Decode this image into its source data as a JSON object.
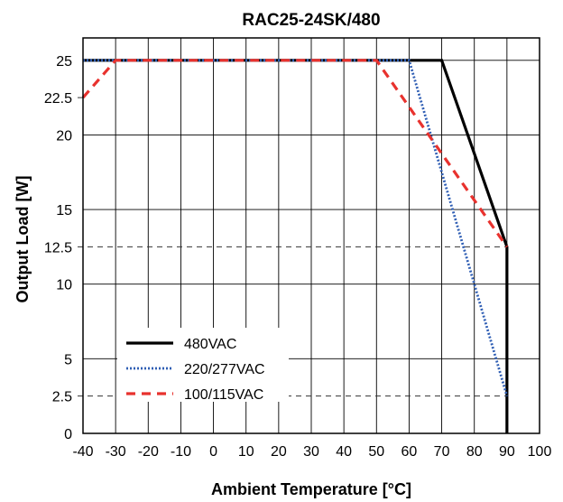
{
  "chart_data": {
    "type": "line",
    "title": "RAC25-24SK/480",
    "xlabel": "Ambient Temperature [°C]",
    "ylabel": "Output Load [W]",
    "xlim": [
      -40,
      100
    ],
    "ylim": [
      0,
      26.5
    ],
    "x_ticks": [
      -40,
      -30,
      -20,
      -10,
      0,
      10,
      20,
      30,
      40,
      50,
      60,
      70,
      80,
      90,
      100
    ],
    "x_tick_labels": [
      "-40",
      "-30",
      "-20",
      "-10",
      "0",
      "10",
      "20",
      "30",
      "40",
      "50",
      "60",
      "70",
      "80",
      "90",
      "100"
    ],
    "y_ticks": [
      0,
      2.5,
      5,
      10,
      12.5,
      15,
      20,
      22.5,
      25
    ],
    "y_tick_labels": [
      "0",
      "2.5",
      "5",
      "10",
      "12.5",
      "15",
      "20",
      "22.5",
      "25"
    ],
    "grid": true,
    "reference_lines": [
      {
        "y": 12.5,
        "x_to": 90
      },
      {
        "y": 2.5,
        "x_to": 90
      },
      {
        "y": 22.5,
        "x_to": -40
      }
    ],
    "series": [
      {
        "name": "480VAC",
        "color": "#000000",
        "style": "solid",
        "x": [
          -40,
          70,
          90,
          90
        ],
        "y": [
          25,
          25,
          12.5,
          0
        ]
      },
      {
        "name": "220/277VAC",
        "color": "#2f5eb4",
        "style": "dotted",
        "x": [
          -40,
          60,
          90
        ],
        "y": [
          25,
          25,
          2.5
        ]
      },
      {
        "name": "100/115VAC",
        "color": "#e8322e",
        "style": "dashed",
        "x": [
          -40,
          -30,
          50,
          90
        ],
        "y": [
          22.5,
          25,
          25,
          12.5
        ]
      }
    ],
    "legend_position": "bottom-left"
  }
}
